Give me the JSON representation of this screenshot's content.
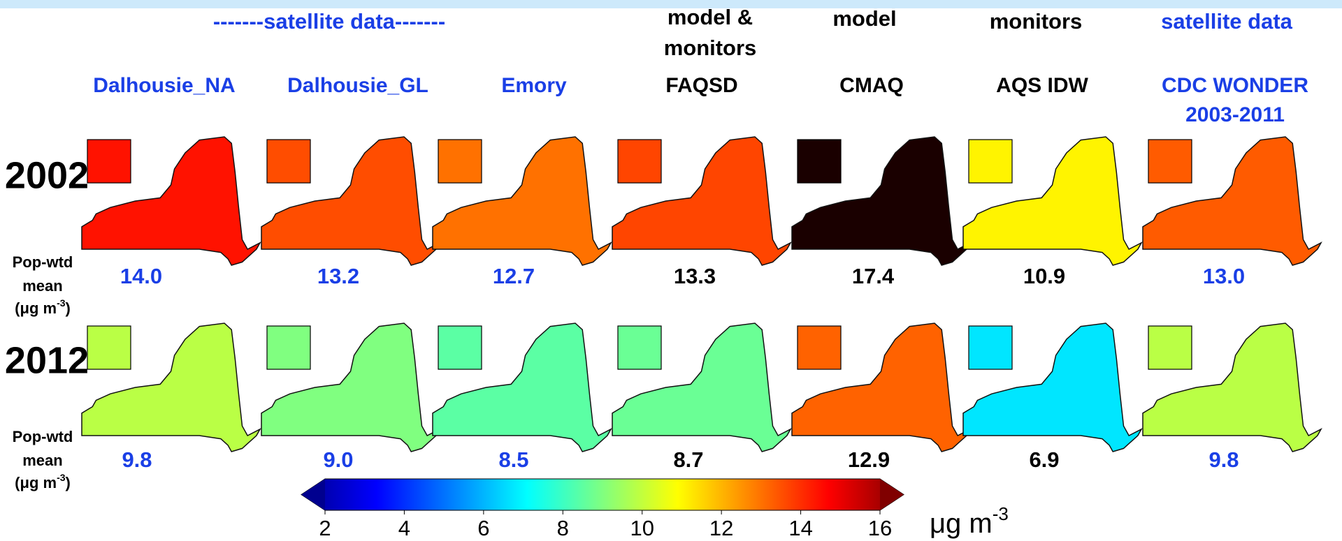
{
  "header": {
    "groups": [
      {
        "lines": [
          "-------satellite data-------"
        ],
        "color": "#1a3fe6"
      },
      {
        "lines": [
          "model &",
          "monitors"
        ],
        "color": "#000000"
      },
      {
        "lines": [
          "model"
        ],
        "color": "#000000"
      },
      {
        "lines": [
          "monitors"
        ],
        "color": "#000000"
      },
      {
        "lines": [
          "satellite data"
        ],
        "color": "#1a3fe6"
      }
    ]
  },
  "columns": [
    {
      "lines": [
        "Dalhousie_NA"
      ],
      "color": "#1a3fe6"
    },
    {
      "lines": [
        "Dalhousie_GL"
      ],
      "color": "#1a3fe6"
    },
    {
      "lines": [
        "Emory"
      ],
      "color": "#1a3fe6"
    },
    {
      "lines": [
        "FAQSD"
      ],
      "color": "#000000"
    },
    {
      "lines": [
        "CMAQ"
      ],
      "color": "#000000"
    },
    {
      "lines": [
        "AQS IDW"
      ],
      "color": "#000000"
    },
    {
      "lines": [
        "CDC WONDER",
        "2003-2011"
      ],
      "color": "#1a3fe6"
    }
  ],
  "mean_label": {
    "lines": [
      "Pop-wtd",
      "mean"
    ],
    "unit_open": "(μg m",
    "unit_sup": "-3",
    "unit_close": ")"
  },
  "rows": [
    {
      "year": "2002",
      "values": [
        14.0,
        13.2,
        12.7,
        13.3,
        17.4,
        10.9,
        13.0
      ],
      "value_labels": [
        "14.0",
        "13.2",
        "12.7",
        "13.3",
        "17.4",
        "10.9",
        "13.0"
      ]
    },
    {
      "year": "2012",
      "values": [
        9.8,
        9.0,
        8.5,
        8.7,
        12.9,
        6.9,
        9.8
      ],
      "value_labels": [
        "9.8",
        "9.0",
        "8.5",
        "8.7",
        "12.9",
        "6.9",
        "9.8"
      ]
    }
  ],
  "colorbar": {
    "lim": [
      2,
      16
    ],
    "ticks": [
      2,
      4,
      6,
      8,
      10,
      12,
      14,
      16
    ],
    "unit": "μg m",
    "unit_sup": "-3"
  }
}
